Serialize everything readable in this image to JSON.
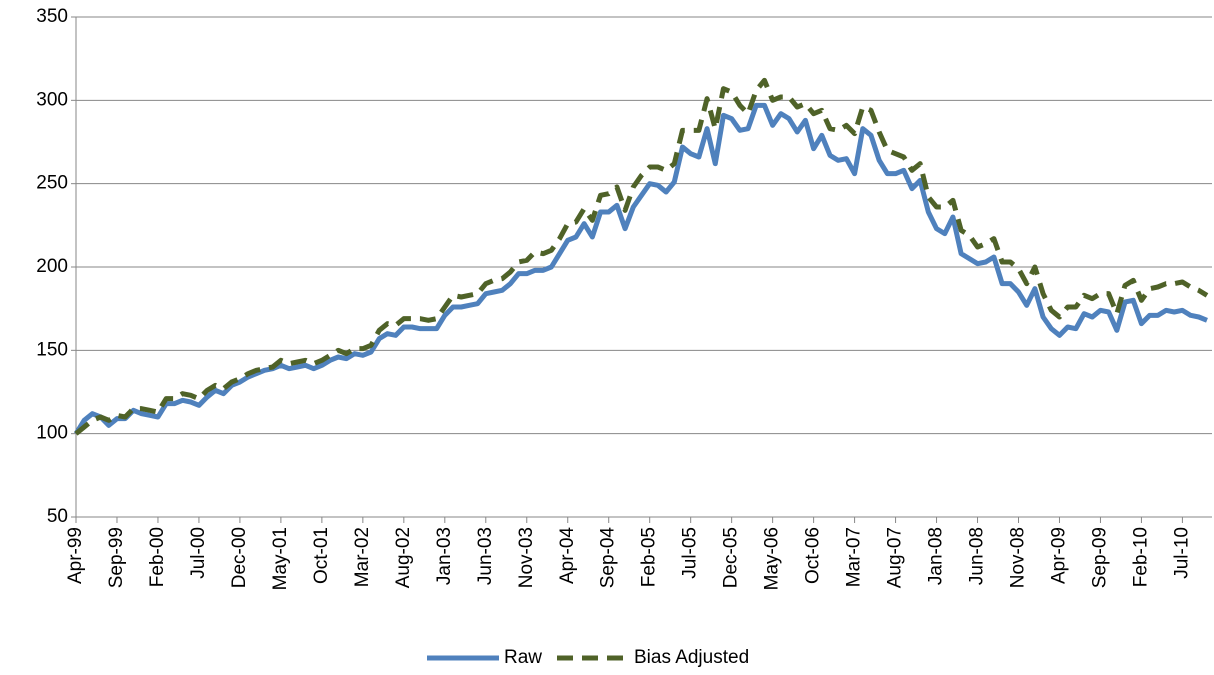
{
  "chart_data": {
    "type": "line",
    "categories": [
      "Apr-99",
      null,
      null,
      null,
      null,
      "Sep-99",
      null,
      null,
      null,
      null,
      "Feb-00",
      null,
      null,
      null,
      null,
      "Jul-00",
      null,
      null,
      null,
      null,
      "Dec-00",
      null,
      null,
      null,
      null,
      "May-01",
      null,
      null,
      null,
      null,
      "Oct-01",
      null,
      null,
      null,
      null,
      "Mar-02",
      null,
      null,
      null,
      null,
      "Aug-02",
      null,
      null,
      null,
      null,
      "Jan-03",
      null,
      null,
      null,
      null,
      "Jun-03",
      null,
      null,
      null,
      null,
      "Nov-03",
      null,
      null,
      null,
      null,
      "Apr-04",
      null,
      null,
      null,
      null,
      "Sep-04",
      null,
      null,
      null,
      null,
      "Feb-05",
      null,
      null,
      null,
      null,
      "Jul-05",
      null,
      null,
      null,
      null,
      "Dec-05",
      null,
      null,
      null,
      null,
      "May-06",
      null,
      null,
      null,
      null,
      "Oct-06",
      null,
      null,
      null,
      null,
      "Mar-07",
      null,
      null,
      null,
      null,
      "Aug-07",
      null,
      null,
      null,
      null,
      "Jan-08",
      null,
      null,
      null,
      null,
      "Jun-08",
      null,
      null,
      null,
      null,
      "Nov-08",
      null,
      null,
      null,
      null,
      "Apr-09",
      null,
      null,
      null,
      null,
      "Sep-09",
      null,
      null,
      null,
      null,
      "Feb-10",
      null,
      null,
      null,
      null,
      "Jul-10",
      null,
      null,
      null
    ],
    "series": [
      {
        "name": "Raw",
        "color": "#4f81bd",
        "dashed": false,
        "values": [
          100,
          108,
          112,
          110,
          105,
          109,
          109,
          114,
          112,
          111,
          110,
          118,
          118,
          120,
          119,
          117,
          122,
          126,
          124,
          129,
          131,
          134,
          136,
          138,
          139,
          141,
          139,
          140,
          141,
          139,
          141,
          144,
          146,
          145,
          148,
          147,
          149,
          157,
          160,
          159,
          164,
          164,
          163,
          163,
          163,
          171,
          176,
          176,
          177,
          178,
          184,
          185,
          186,
          190,
          196,
          196,
          198,
          198,
          200,
          208,
          216,
          218,
          226,
          218,
          233,
          233,
          237,
          223,
          236,
          243,
          250,
          249,
          245,
          251,
          272,
          268,
          266,
          283,
          262,
          291,
          289,
          282,
          283,
          297,
          297,
          285,
          292,
          289,
          281,
          288,
          271,
          279,
          267,
          264,
          265,
          256,
          283,
          279,
          264,
          256,
          256,
          258,
          247,
          252,
          233,
          223,
          220,
          230,
          208,
          205,
          202,
          203,
          206,
          190,
          190,
          185,
          177,
          187,
          170,
          163,
          159,
          164,
          163,
          172,
          170,
          174,
          173,
          162,
          179,
          180,
          166,
          171,
          171,
          174,
          173,
          174,
          171,
          170,
          168
        ]
      },
      {
        "name": "Bias Adjusted",
        "color": "#4f6228",
        "dashed": true,
        "values": [
          100,
          104,
          108,
          110,
          108,
          111,
          110,
          115,
          115,
          114,
          113,
          121,
          121,
          124,
          123,
          121,
          126,
          129,
          127,
          131,
          133,
          136,
          138,
          139,
          140,
          144,
          142,
          143,
          144,
          142,
          144,
          147,
          150,
          148,
          151,
          151,
          153,
          162,
          166,
          165,
          169,
          169,
          169,
          168,
          169,
          176,
          183,
          182,
          183,
          184,
          190,
          192,
          193,
          197,
          203,
          204,
          209,
          208,
          210,
          217,
          226,
          227,
          235,
          228,
          243,
          244,
          248,
          234,
          248,
          255,
          260,
          260,
          258,
          262,
          282,
          282,
          282,
          301,
          283,
          307,
          305,
          297,
          292,
          306,
          312,
          300,
          302,
          302,
          296,
          298,
          292,
          294,
          283,
          282,
          285,
          280,
          296,
          294,
          281,
          270,
          268,
          266,
          258,
          262,
          242,
          236,
          236,
          240,
          222,
          219,
          212,
          214,
          217,
          203,
          203,
          199,
          190,
          200,
          184,
          174,
          170,
          176,
          176,
          183,
          181,
          184,
          184,
          172,
          189,
          192,
          180,
          187,
          188,
          190,
          190,
          191,
          188,
          186,
          183
        ]
      }
    ],
    "ylim": [
      50,
      350
    ],
    "yticks": [
      50,
      100,
      150,
      200,
      250,
      300,
      350
    ],
    "grid": true,
    "legend": "bottom"
  }
}
